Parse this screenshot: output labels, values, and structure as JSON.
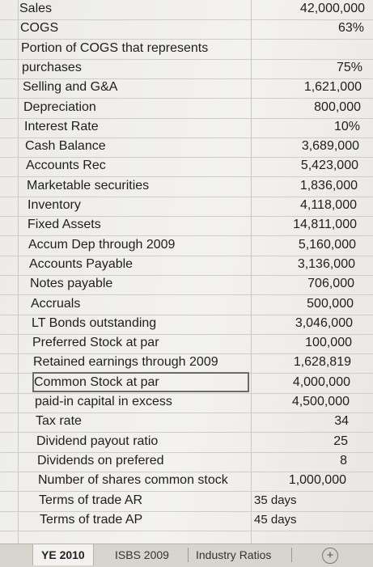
{
  "rows": [
    {
      "label": "Sales",
      "value": "42,000,000"
    },
    {
      "label": "COGS",
      "value": "63%"
    },
    {
      "label": "Portion of COGS that represents",
      "value": ""
    },
    {
      "label": "purchases",
      "value": "75%"
    },
    {
      "label": "Selling and G&A",
      "value": "1,621,000"
    },
    {
      "label": "Depreciation",
      "value": "800,000"
    },
    {
      "label": "Interest Rate",
      "value": "10%"
    },
    {
      "label": "Cash Balance",
      "value": "3,689,000"
    },
    {
      "label": "Accounts Rec",
      "value": "5,423,000"
    },
    {
      "label": "Marketable securities",
      "value": "1,836,000"
    },
    {
      "label": "Inventory",
      "value": "4,118,000"
    },
    {
      "label": "Fixed Assets",
      "value": "14,811,000"
    },
    {
      "label": "Accum Dep through 2009",
      "value": "5,160,000"
    },
    {
      "label": "Accounts Payable",
      "value": "3,136,000"
    },
    {
      "label": "Notes payable",
      "value": "706,000"
    },
    {
      "label": "Accruals",
      "value": "500,000"
    },
    {
      "label": "LT Bonds outstanding",
      "value": "3,046,000"
    },
    {
      "label": "Preferred Stock at par",
      "value": "100,000"
    },
    {
      "label": "Retained earnings through 2009",
      "value": "1,628,819"
    },
    {
      "label": "Common Stock at par",
      "value": "4,000,000"
    },
    {
      "label": "paid-in capital in excess",
      "value": "4,500,000"
    },
    {
      "label": "Tax rate",
      "value": "34"
    },
    {
      "label": "Dividend payout ratio",
      "value": "25"
    },
    {
      "label": "Dividends on prefered",
      "value": "8"
    },
    {
      "label": "Number of shares common stock",
      "value": "1,000,000"
    },
    {
      "label": "Terms of trade AR",
      "value": "",
      "mid": "35 days"
    },
    {
      "label": "Terms of trade AP",
      "value": "",
      "mid": "45 days"
    }
  ],
  "tabs": [
    "YE 2010",
    "ISBS 2009",
    "Industry Ratios"
  ],
  "add_sheet_symbol": "+"
}
